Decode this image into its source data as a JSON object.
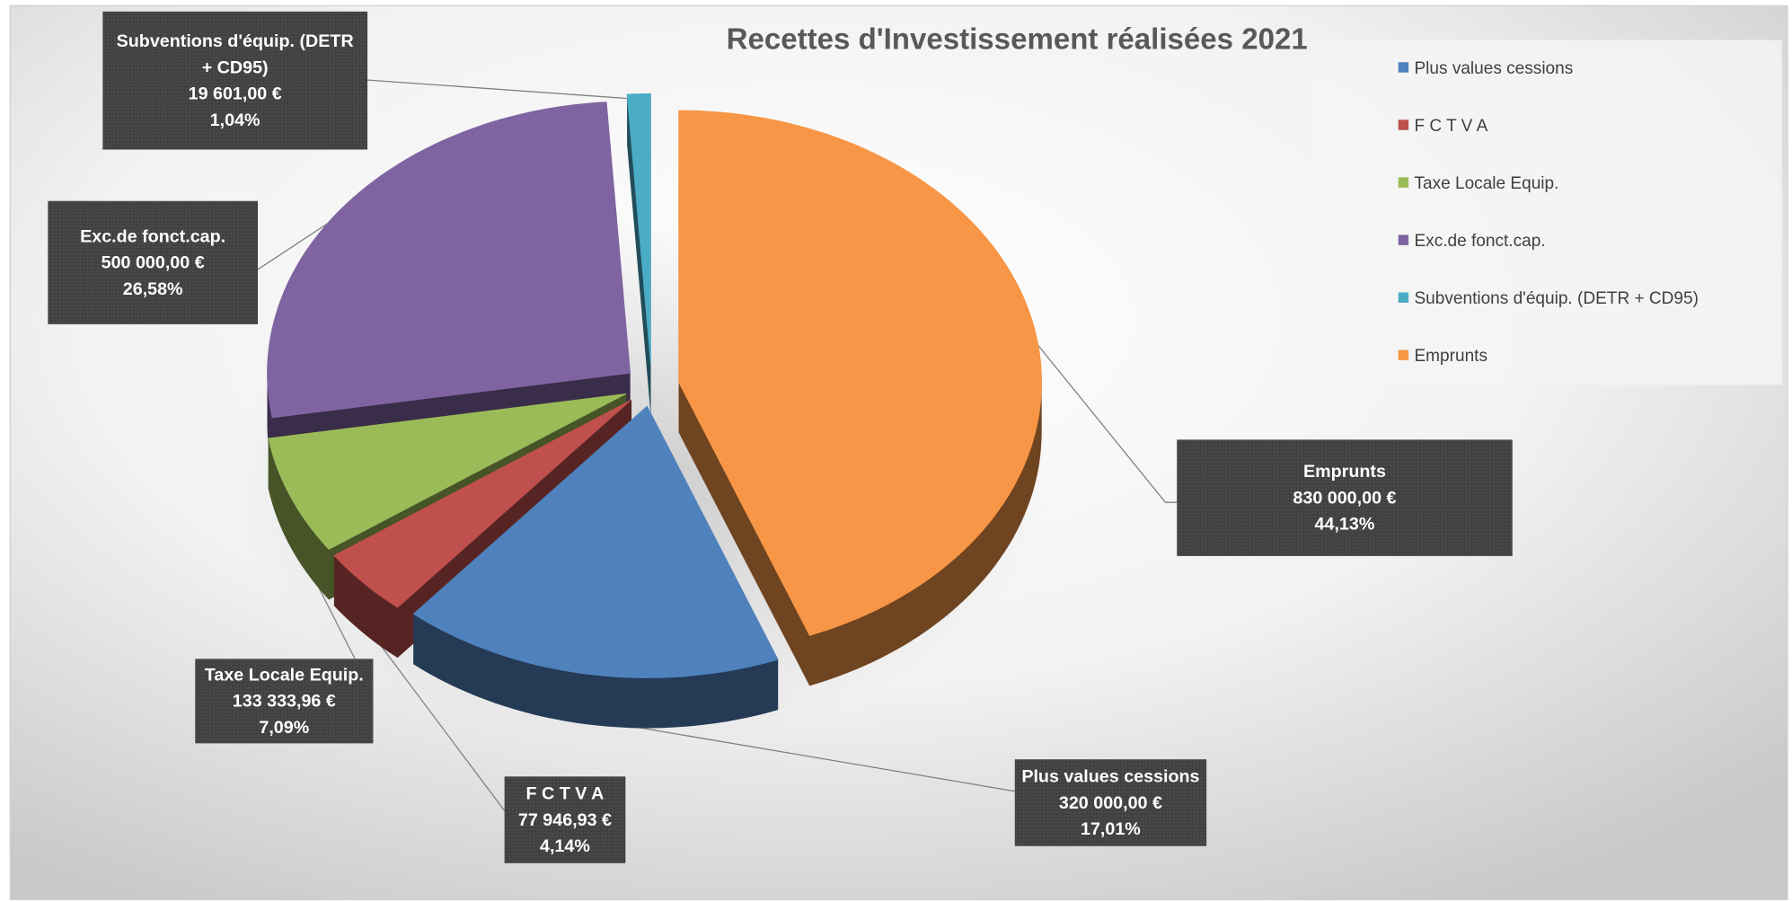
{
  "chart_data": {
    "type": "pie",
    "title": "Recettes d'Investissement réalisées 2021",
    "categories": [
      "Plus values cessions",
      "F C T V A",
      "Taxe Locale Equip.",
      "Exc.de fonct.cap.",
      "Subventions d'équip. (DETR + CD95)",
      "Emprunts"
    ],
    "values": [
      320000,
      77946.93,
      133333.96,
      500000,
      19601,
      830000
    ],
    "value_labels": [
      "320 000,00 €",
      "77 946,93 €",
      "133 333,96 €",
      "500 000,00 €",
      "19 601,00 €",
      "830 000,00 €"
    ],
    "percent_labels": [
      "17,01%",
      "4,14%",
      "7,09%",
      "26,58%",
      "1,04%",
      "44,13%"
    ],
    "colors": [
      "#4f81bd",
      "#c0504d",
      "#9bbb59",
      "#8064a2",
      "#4bacc6",
      "#f79646"
    ],
    "legend": "right",
    "exploded": true,
    "three_d": true
  }
}
